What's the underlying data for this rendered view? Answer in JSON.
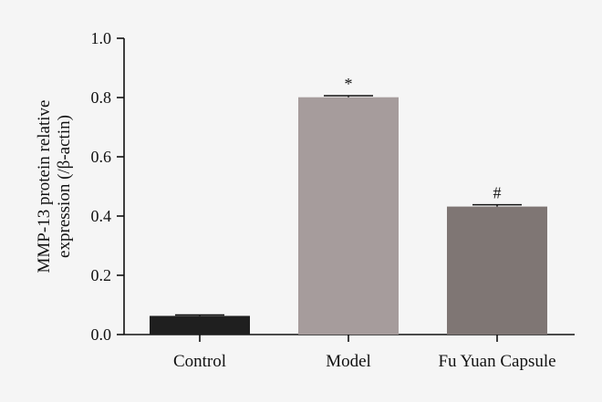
{
  "chart_data": {
    "type": "bar",
    "title": "",
    "xlabel": "",
    "ylabel_lines": [
      "MMP-13 protein relative",
      "expression (/β-actin)"
    ],
    "ylim": [
      0,
      1.0
    ],
    "yticks": [
      "0.0",
      "0.2",
      "0.4",
      "0.6",
      "0.8",
      "1.0"
    ],
    "categories": [
      "Control",
      "Model",
      "Fu Yuan Capsule"
    ],
    "values": [
      0.063,
      0.801,
      0.432
    ],
    "errors": [
      0.003,
      0.005,
      0.006
    ],
    "annotations": [
      "",
      "*",
      "#"
    ],
    "colors": [
      "#1f1f1f",
      "#a69c9c",
      "#7f7674"
    ],
    "grid": false
  }
}
